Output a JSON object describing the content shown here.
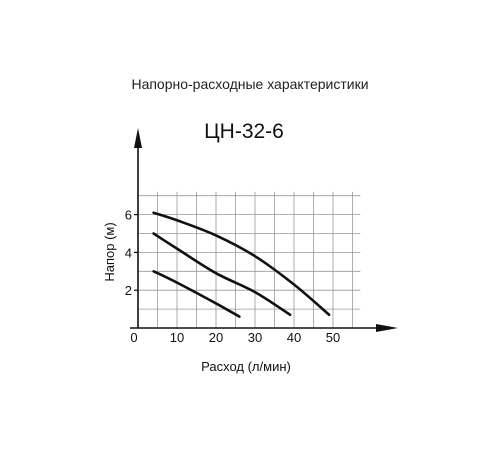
{
  "page": {
    "heading": "Напорно-расходные характеристики"
  },
  "chart_data": {
    "type": "line",
    "title": "ЦН-32-6",
    "xlabel": "Расход (л/мин)",
    "ylabel": "Напор (м)",
    "xlim": [
      0,
      57
    ],
    "ylim": [
      0,
      7.2
    ],
    "x_ticks": [
      0,
      10,
      20,
      30,
      40,
      50
    ],
    "x_tick_labels": [
      "0",
      "10",
      "20",
      "30",
      "40",
      "50"
    ],
    "y_ticks": [
      2,
      4,
      6
    ],
    "y_tick_labels": [
      "2",
      "4",
      "6"
    ],
    "grid": true,
    "grid_x_step": 5,
    "grid_y_step": 1,
    "colors": {
      "curve": "#111111",
      "grid": "#999999",
      "axis": "#111111"
    },
    "series": [
      {
        "x": [
          4,
          10,
          20,
          30,
          40,
          49
        ],
        "y": [
          6.1,
          5.7,
          4.9,
          3.8,
          2.3,
          0.7
        ]
      },
      {
        "x": [
          4,
          10,
          20,
          30,
          39
        ],
        "y": [
          5.0,
          4.2,
          2.9,
          1.9,
          0.7
        ]
      },
      {
        "x": [
          4,
          10,
          20,
          26
        ],
        "y": [
          3.0,
          2.4,
          1.3,
          0.6
        ]
      }
    ]
  }
}
